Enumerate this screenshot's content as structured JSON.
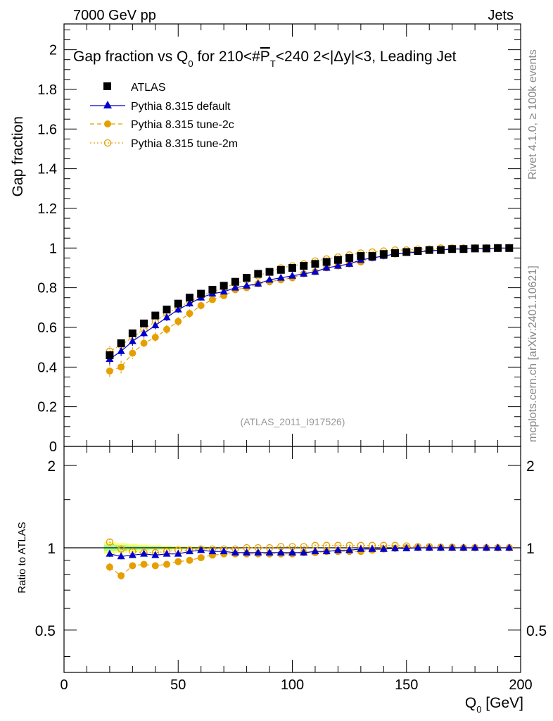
{
  "header": {
    "left": "7000 GeV pp",
    "right": "Jets"
  },
  "chart_data": [
    {
      "type": "scatter",
      "panel": "main",
      "title": "Gap fraction vs Q",
      "title_sub": "0",
      "title_rest": " for 210<#",
      "title_p": "P",
      "title_p_sub": "T",
      "title_tail": "<240  2<|Δy|<3, Leading Jet",
      "ylabel": "Gap fraction",
      "xlabel": "Q",
      "xlabel_sub": "0",
      "xlabel_unit": " [GeV]",
      "xlim": [
        0,
        200
      ],
      "ylim": [
        0,
        2.13
      ],
      "yticks": [
        "0",
        "0.2",
        "0.4",
        "0.6",
        "0.8",
        "1",
        "1.2",
        "1.4",
        "1.6",
        "1.8",
        "2"
      ],
      "xticks": [
        "0",
        "50",
        "100",
        "150",
        "200"
      ],
      "analysis_label": "(ATLAS_2011_I917526)",
      "legend": [
        "ATLAS",
        "Pythia 8.315 default",
        "Pythia 8.315 tune-2c",
        "Pythia 8.315 tune-2m"
      ],
      "x": [
        20,
        25,
        30,
        35,
        40,
        45,
        50,
        55,
        60,
        65,
        70,
        75,
        80,
        85,
        90,
        95,
        100,
        105,
        110,
        115,
        120,
        125,
        130,
        135,
        140,
        145,
        150,
        155,
        160,
        165,
        170,
        175,
        180,
        185,
        190,
        195
      ],
      "series": [
        {
          "name": "ATLAS",
          "color": "#000000",
          "values": [
            0.46,
            0.52,
            0.57,
            0.62,
            0.66,
            0.69,
            0.72,
            0.75,
            0.77,
            0.79,
            0.81,
            0.83,
            0.85,
            0.87,
            0.88,
            0.89,
            0.9,
            0.91,
            0.92,
            0.93,
            0.94,
            0.95,
            0.96,
            0.96,
            0.97,
            0.975,
            0.98,
            0.985,
            0.99,
            0.99,
            0.995,
            0.995,
            0.998,
            0.998,
            1.0,
            1.0
          ]
        },
        {
          "name": "Pythia 8.315 default",
          "color": "#0000cc",
          "values": [
            0.44,
            0.48,
            0.53,
            0.57,
            0.61,
            0.65,
            0.69,
            0.72,
            0.75,
            0.77,
            0.78,
            0.8,
            0.81,
            0.82,
            0.84,
            0.85,
            0.86,
            0.87,
            0.88,
            0.9,
            0.91,
            0.92,
            0.94,
            0.95,
            0.96,
            0.97,
            0.975,
            0.98,
            0.985,
            0.99,
            0.995,
            0.995,
            0.998,
            0.998,
            1.0,
            1.0
          ]
        },
        {
          "name": "Pythia 8.315 tune-2c",
          "color": "#e69f00",
          "values": [
            0.38,
            0.4,
            0.47,
            0.52,
            0.55,
            0.59,
            0.63,
            0.67,
            0.71,
            0.74,
            0.76,
            0.79,
            0.8,
            0.82,
            0.83,
            0.84,
            0.85,
            0.87,
            0.88,
            0.9,
            0.91,
            0.92,
            0.93,
            0.95,
            0.96,
            0.97,
            0.98,
            0.985,
            0.99,
            0.99,
            0.995,
            0.995,
            0.998,
            0.998,
            1.0,
            1.0
          ]
        },
        {
          "name": "Pythia 8.315 tune-2m",
          "color": "#e69f00",
          "values": [
            0.48,
            0.51,
            0.55,
            0.59,
            0.63,
            0.67,
            0.7,
            0.73,
            0.76,
            0.78,
            0.8,
            0.82,
            0.84,
            0.86,
            0.88,
            0.9,
            0.91,
            0.92,
            0.935,
            0.945,
            0.955,
            0.965,
            0.975,
            0.98,
            0.985,
            0.99,
            0.99,
            0.995,
            0.995,
            1.0,
            1.0,
            1.0,
            1.0,
            1.0,
            1.0,
            1.0
          ]
        }
      ]
    },
    {
      "type": "scatter",
      "panel": "ratio",
      "ylabel": "Ratio to ATLAS",
      "ylim_log": [
        0.35,
        2.35
      ],
      "yticks": [
        "0.5",
        "1",
        "2"
      ],
      "xlim": [
        0,
        200
      ],
      "x": [
        20,
        25,
        30,
        35,
        40,
        45,
        50,
        55,
        60,
        65,
        70,
        75,
        80,
        85,
        90,
        95,
        100,
        105,
        110,
        115,
        120,
        125,
        130,
        135,
        140,
        145,
        150,
        155,
        160,
        165,
        170,
        175,
        180,
        185,
        190,
        195
      ],
      "series": [
        {
          "name": "Pythia 8.315 default",
          "color": "#0000cc",
          "values": [
            0.95,
            0.93,
            0.94,
            0.95,
            0.94,
            0.95,
            0.95,
            0.97,
            0.98,
            0.97,
            0.97,
            0.96,
            0.96,
            0.96,
            0.96,
            0.96,
            0.96,
            0.96,
            0.97,
            0.97,
            0.98,
            0.98,
            0.99,
            0.99,
            0.99,
            0.995,
            0.995,
            1.0,
            1.0,
            1.0,
            1.0,
            1.0,
            1.0,
            1.0,
            1.0,
            1.0
          ]
        },
        {
          "name": "Pythia 8.315 tune-2c",
          "color": "#e69f00",
          "values": [
            0.85,
            0.79,
            0.86,
            0.87,
            0.86,
            0.87,
            0.89,
            0.9,
            0.92,
            0.94,
            0.95,
            0.95,
            0.95,
            0.95,
            0.95,
            0.95,
            0.95,
            0.96,
            0.96,
            0.97,
            0.97,
            0.97,
            0.97,
            0.98,
            0.99,
            0.995,
            1.0,
            1.0,
            1.0,
            1.0,
            1.0,
            1.0,
            1.0,
            1.0,
            1.0,
            1.0
          ]
        },
        {
          "name": "Pythia 8.315 tune-2m",
          "color": "#e69f00",
          "values": [
            1.05,
            0.99,
            0.97,
            0.96,
            0.96,
            0.97,
            0.98,
            0.98,
            0.99,
            0.99,
            0.99,
            0.99,
            1.0,
            1.0,
            1.0,
            1.01,
            1.01,
            1.01,
            1.02,
            1.02,
            1.02,
            1.02,
            1.02,
            1.02,
            1.02,
            1.02,
            1.015,
            1.01,
            1.01,
            1.005,
            1.005,
            1.0,
            1.0,
            1.0,
            1.0,
            1.0
          ]
        }
      ]
    }
  ],
  "side_labels": {
    "rivet": "Rivet 4.1.0, ≥ 100k events",
    "mcplots": "mcplots.cern.ch [arXiv:2401.10621]"
  }
}
